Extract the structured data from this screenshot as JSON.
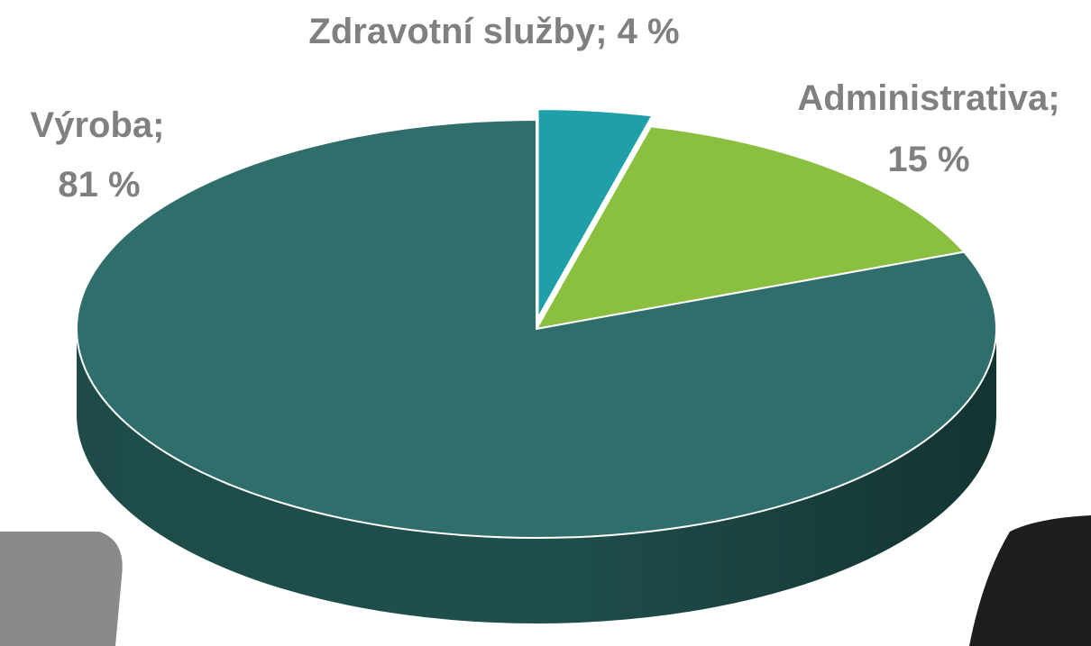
{
  "chart_data": {
    "type": "pie",
    "categories": [
      "Zdravotní služby",
      "Administrativa",
      "Výroba"
    ],
    "values": [
      4,
      15,
      81
    ],
    "value_labels": [
      "4 %",
      "15 %",
      "81 %"
    ],
    "label_separator": ";",
    "colors": [
      "#1fa0a8",
      "#8bbf3f",
      "#2f6e6a"
    ],
    "side_colors": [
      "#137278",
      "#56802a",
      "#1f4f4c"
    ]
  }
}
